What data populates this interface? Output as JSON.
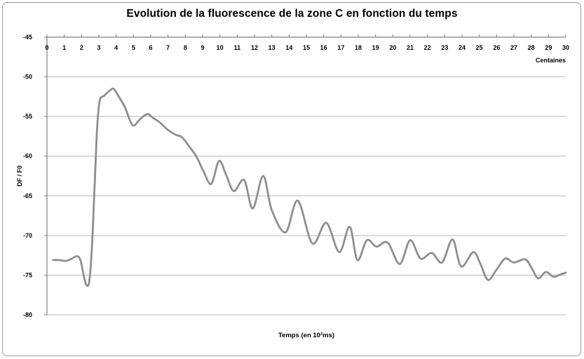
{
  "chart_data": {
    "type": "line",
    "title": "Evolution de la fluorescence de la zone C en fonction du temps",
    "xlabel": "Temps (en 10²ms)",
    "ylabel": "DF / F0",
    "x_axis_unit": "Centaines",
    "xlim": [
      0,
      30
    ],
    "ylim": [
      -80,
      -45
    ],
    "x_ticks": [
      0,
      1,
      2,
      3,
      4,
      5,
      6,
      7,
      8,
      9,
      10,
      11,
      12,
      13,
      14,
      15,
      16,
      17,
      18,
      19,
      20,
      21,
      22,
      23,
      24,
      25,
      26,
      27,
      28,
      29,
      30
    ],
    "y_ticks": [
      -45,
      -50,
      -55,
      -60,
      -65,
      -70,
      -75,
      -80
    ],
    "grid": "horizontal",
    "legend": "none",
    "series": [
      {
        "name": "DF/F0 zone C",
        "points": [
          [
            0.35,
            -73.1
          ],
          [
            0.7,
            -73.1
          ],
          [
            1.1,
            -73.2
          ],
          [
            1.45,
            -72.9
          ],
          [
            1.75,
            -72.6
          ],
          [
            1.95,
            -73.2
          ],
          [
            2.15,
            -75.3
          ],
          [
            2.3,
            -76.3
          ],
          [
            2.45,
            -75.7
          ],
          [
            2.6,
            -71.5
          ],
          [
            2.75,
            -64.0
          ],
          [
            2.9,
            -56.5
          ],
          [
            3.05,
            -53.0
          ],
          [
            3.3,
            -52.4
          ],
          [
            3.6,
            -51.8
          ],
          [
            3.85,
            -51.5
          ],
          [
            4.1,
            -52.3
          ],
          [
            4.5,
            -53.8
          ],
          [
            4.95,
            -56.1
          ],
          [
            5.35,
            -55.4
          ],
          [
            5.8,
            -54.7
          ],
          [
            6.15,
            -55.2
          ],
          [
            6.5,
            -55.7
          ],
          [
            7.0,
            -56.7
          ],
          [
            7.45,
            -57.3
          ],
          [
            7.8,
            -57.6
          ],
          [
            8.2,
            -58.7
          ],
          [
            8.65,
            -60.1
          ],
          [
            9.05,
            -61.9
          ],
          [
            9.5,
            -63.5
          ],
          [
            9.95,
            -60.6
          ],
          [
            10.35,
            -62.3
          ],
          [
            10.8,
            -64.4
          ],
          [
            11.4,
            -63.0
          ],
          [
            11.9,
            -66.6
          ],
          [
            12.5,
            -62.5
          ],
          [
            13.0,
            -66.8
          ],
          [
            13.8,
            -69.6
          ],
          [
            14.5,
            -65.6
          ],
          [
            15.35,
            -71.0
          ],
          [
            16.15,
            -68.4
          ],
          [
            16.9,
            -72.1
          ],
          [
            17.5,
            -68.9
          ],
          [
            17.95,
            -73.1
          ],
          [
            18.5,
            -70.6
          ],
          [
            19.05,
            -71.4
          ],
          [
            19.7,
            -70.9
          ],
          [
            20.4,
            -73.6
          ],
          [
            21.0,
            -70.6
          ],
          [
            21.6,
            -72.9
          ],
          [
            22.25,
            -72.2
          ],
          [
            22.85,
            -73.4
          ],
          [
            23.45,
            -70.5
          ],
          [
            23.95,
            -73.9
          ],
          [
            24.65,
            -72.1
          ],
          [
            25.05,
            -73.5
          ],
          [
            25.5,
            -75.6
          ],
          [
            26.0,
            -74.3
          ],
          [
            26.5,
            -72.9
          ],
          [
            27.0,
            -73.4
          ],
          [
            27.65,
            -73.0
          ],
          [
            28.0,
            -74.0
          ],
          [
            28.4,
            -75.4
          ],
          [
            28.85,
            -74.6
          ],
          [
            29.3,
            -75.2
          ],
          [
            29.7,
            -74.9
          ],
          [
            30.0,
            -74.7
          ]
        ]
      }
    ]
  },
  "colors": {
    "background": "#ffffff",
    "border": "#9c9c9c",
    "line": "#8f8f8f",
    "grid": "#b9b9b9",
    "axis": "#7f7f7f",
    "text": "#000000"
  }
}
